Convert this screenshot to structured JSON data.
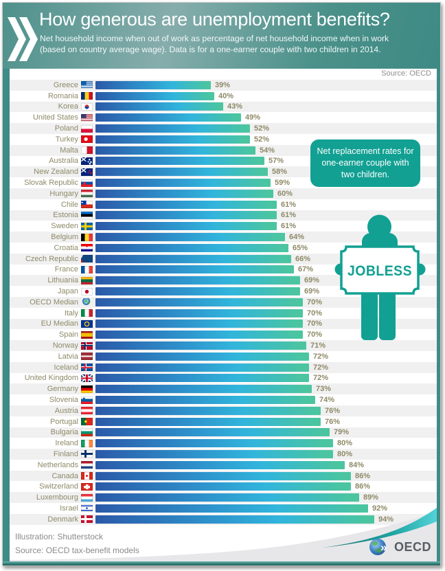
{
  "header": {
    "title": "How generous are unemployment benefits?",
    "subtitle": "Net household income when out of work as percentage of net household income when in work (based on country average wage). Data is for a one-earner couple with two children in 2014."
  },
  "source_note": "Source: OECD",
  "callout": {
    "text": "Net replacement rates for one-earner couple with two children."
  },
  "figure": {
    "sign_text": "JOBLESS"
  },
  "footer": {
    "illustration_credit": "Illustration: Shutterstock",
    "source_credit": "Source: OECD tax-benefit models",
    "logo_text": "OECD"
  },
  "colors": {
    "teal": "#12a093",
    "olive": "#8e8966",
    "bar1": "#2b59a8",
    "bar2": "#2e93cc",
    "bar3": "#31b5dc",
    "bar4": "#4bc5a0",
    "stripe": "#f0f0f1"
  },
  "chart_data": {
    "type": "bar",
    "orientation": "horizontal",
    "title": "How generous are unemployment benefits?",
    "xlabel": "",
    "ylabel": "",
    "unit": "%",
    "value_suffix": "%",
    "xlim": [
      0,
      100
    ],
    "legend": "none",
    "grid": false,
    "categories": [
      "Greece",
      "Romania",
      "Korea",
      "United States",
      "Poland",
      "Turkey",
      "Malta",
      "Australia",
      "New Zealand",
      "Slovak Republic",
      "Hungary",
      "Chile",
      "Estonia",
      "Sweden",
      "Belgium",
      "Croatia",
      "Czech Republic",
      "France",
      "Lithuania",
      "Japan",
      "OECD Median",
      "Italy",
      "EU Median",
      "Spain",
      "Norway",
      "Latvia",
      "Iceland",
      "United Kingdom",
      "Germany",
      "Slovenia",
      "Austria",
      "Portugal",
      "Bulgaria",
      "Ireland",
      "Finland",
      "Netherlands",
      "Canada",
      "Switzerland",
      "Luxembourg",
      "Israel",
      "Denmark"
    ],
    "values": [
      39,
      40,
      43,
      49,
      52,
      52,
      54,
      57,
      58,
      59,
      60,
      61,
      61,
      61,
      64,
      65,
      66,
      67,
      69,
      69,
      70,
      70,
      70,
      70,
      71,
      72,
      72,
      72,
      73,
      74,
      76,
      76,
      79,
      80,
      80,
      84,
      86,
      86,
      89,
      92,
      94
    ],
    "value_labels": [
      "39%",
      "40%",
      "43%",
      "49%",
      "52%",
      "52%",
      "54%",
      "57%",
      "58%",
      "59%",
      "60%",
      "61%",
      "61%",
      "61%",
      "64%",
      "65%",
      "66%",
      "67%",
      "69%",
      "69%",
      "70%",
      "70%",
      "70%",
      "70%",
      "71%",
      "72%",
      "72%",
      "72%",
      "73%",
      "74%",
      "76%",
      "76%",
      "79%",
      "80%",
      "80%",
      "84%",
      "86%",
      "86%",
      "89%",
      "92%",
      "94%"
    ],
    "flags": [
      {
        "t": "canton",
        "rep": true,
        "c": [
          "#0D5EAF",
          "#ffffff"
        ],
        "canton": "#0D5EAF"
      },
      {
        "t": "v",
        "c": [
          "#002B7F",
          "#FCD116",
          "#CE1126"
        ]
      },
      {
        "t": "korea"
      },
      {
        "t": "canton",
        "rep": true,
        "c": [
          "#B22234",
          "#ffffff"
        ],
        "canton": "#3C3B6E"
      },
      {
        "t": "h",
        "c": [
          "#ffffff",
          "#DC143C"
        ]
      },
      {
        "t": "disc",
        "c": [
          "#E30A17",
          "#ffffff"
        ],
        "cx": 42,
        "r": 22
      },
      {
        "t": "v",
        "c": [
          "#ffffff",
          "#CF142B"
        ]
      },
      {
        "t": "jack",
        "c": [
          "#00247D"
        ],
        "sc": "#ffffff",
        "stars": [
          [
            72,
            30
          ],
          [
            85,
            62
          ],
          [
            62,
            58
          ],
          [
            76,
            84
          ]
        ]
      },
      {
        "t": "jack",
        "c": [
          "#00247D"
        ],
        "sc": "#CC142B",
        "stars": [
          [
            72,
            32
          ],
          [
            84,
            62
          ],
          [
            62,
            58
          ]
        ]
      },
      {
        "t": "h",
        "c": [
          "#ffffff",
          "#0B4EA2",
          "#EE1C25"
        ],
        "d": [
          "#EE1C25",
          30,
          55,
          13
        ]
      },
      {
        "t": "h",
        "c": [
          "#CE2939",
          "#ffffff",
          "#477050"
        ]
      },
      {
        "t": "canton",
        "c": [
          "#ffffff",
          "#D52B1E"
        ],
        "canton": "#0039A6",
        "d": [
          "#ffffff",
          10,
          24,
          5
        ]
      },
      {
        "t": "h",
        "c": [
          "#0072CE",
          "#000000",
          "#ffffff"
        ]
      },
      {
        "t": "nordic",
        "c": [
          "#006AA7",
          "#FECC00"
        ]
      },
      {
        "t": "v",
        "c": [
          "#000000",
          "#FDDA24",
          "#EF3340"
        ]
      },
      {
        "t": "h",
        "c": [
          "#FF0000",
          "#ffffff",
          "#171796"
        ],
        "d": [
          "#C8102E",
          50,
          32,
          10
        ]
      },
      {
        "t": "czech",
        "c": [
          "#ffffff",
          "#D7141A",
          "#11457E"
        ]
      },
      {
        "t": "v",
        "c": [
          "#0055A4",
          "#ffffff",
          "#EF4135"
        ]
      },
      {
        "t": "h",
        "c": [
          "#FDB913",
          "#006A44",
          "#C1272D"
        ]
      },
      {
        "t": "disc",
        "c": [
          "#ffffff",
          "#BC002D"
        ],
        "r": 26
      },
      {
        "t": "globe"
      },
      {
        "t": "v",
        "c": [
          "#008C45",
          "#ffffff",
          "#CD212A"
        ]
      },
      {
        "t": "eu"
      },
      {
        "t": "h",
        "c": [
          "#AA151B",
          "#F1BF00",
          "#AA151B"
        ],
        "w": [
          25,
          50,
          25
        ]
      },
      {
        "t": "nordic",
        "c": [
          "#BA0C2F",
          "#ffffff",
          "#00205B"
        ]
      },
      {
        "t": "h",
        "c": [
          "#9E3039",
          "#ffffff",
          "#9E3039"
        ],
        "w": [
          40,
          20,
          40
        ]
      },
      {
        "t": "nordic",
        "c": [
          "#02529C",
          "#ffffff",
          "#DC1E35"
        ]
      },
      {
        "t": "uk"
      },
      {
        "t": "h",
        "c": [
          "#000000",
          "#DD0000",
          "#FFCE00"
        ]
      },
      {
        "t": "h",
        "c": [
          "#ffffff",
          "#005DA4",
          "#ED1C24"
        ],
        "d": [
          "#005DA4",
          25,
          28,
          9
        ]
      },
      {
        "t": "h",
        "c": [
          "#ED2939",
          "#ffffff",
          "#ED2939"
        ]
      },
      {
        "t": "v",
        "c": [
          "#046A38",
          "#DA291C"
        ],
        "w": [
          40,
          60
        ],
        "d": [
          "#FFE900",
          40,
          50,
          14
        ]
      },
      {
        "t": "h",
        "c": [
          "#ffffff",
          "#00966E",
          "#D62612"
        ]
      },
      {
        "t": "v",
        "c": [
          "#169B62",
          "#ffffff",
          "#FF883E"
        ]
      },
      {
        "t": "nordic",
        "c": [
          "#ffffff",
          "#002F6C"
        ]
      },
      {
        "t": "h",
        "c": [
          "#AE1C28",
          "#ffffff",
          "#21468B"
        ]
      },
      {
        "t": "v",
        "c": [
          "#D52B1E",
          "#ffffff",
          "#D52B1E"
        ],
        "w": [
          30,
          40,
          30
        ],
        "d": [
          "#D52B1E",
          50,
          50,
          14
        ]
      },
      {
        "t": "cross",
        "c": [
          "#DA291C",
          "#ffffff"
        ]
      },
      {
        "t": "h",
        "c": [
          "#EF3340",
          "#ffffff",
          "#51ADDA"
        ]
      },
      {
        "t": "israel",
        "d": [
          "#0038B8",
          50,
          50,
          12
        ]
      },
      {
        "t": "nordic",
        "c": [
          "#C8102E",
          "#ffffff"
        ]
      }
    ]
  }
}
